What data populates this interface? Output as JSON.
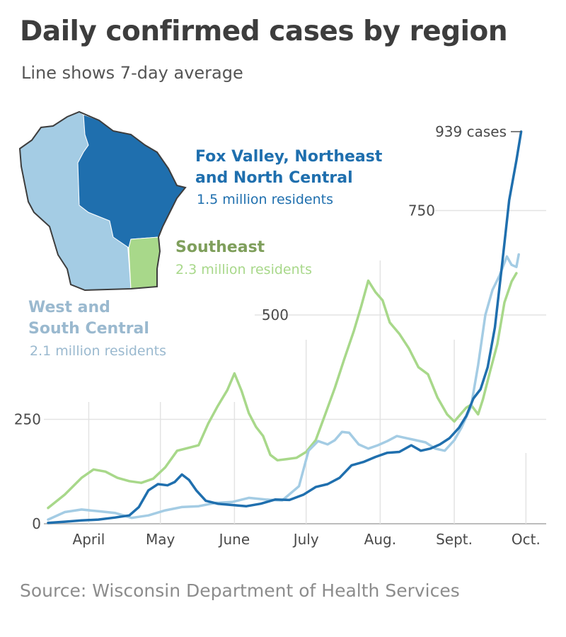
{
  "title": "Daily confirmed cases by region",
  "subtitle": "Line shows 7-day average",
  "source": "Source: Wisconsin Department of Health Services",
  "colors": {
    "north": "#1f6fae",
    "southeast": "#a8d88a",
    "west": "#a4cce4",
    "southeast_label": "#7f9f5c",
    "west_label": "#9ab9cf",
    "grid": "#e3e3e3"
  },
  "map": {
    "description_icon": "wisconsin-region-map"
  },
  "annotations": {
    "north": {
      "line1": "Fox Valley, Northeast",
      "line2": "and North Central",
      "residents": "1.5 million residents"
    },
    "southeast": {
      "line1": "Southeast",
      "residents": "2.3 million residents"
    },
    "west": {
      "line1": "West and",
      "line2": "South Central",
      "residents": "2.1 million residents"
    },
    "peak": "939 cases"
  },
  "chart_data": {
    "type": "line",
    "title": "Daily confirmed cases by region",
    "subtitle": "Line shows 7-day average",
    "ylim": [
      0,
      1000
    ],
    "yticks": [
      0,
      250,
      500,
      750
    ],
    "ytick_labels": [
      "0",
      "250",
      "500",
      "750"
    ],
    "xlim": [
      "2020-03-15",
      "2020-09-30"
    ],
    "x_axis_type": "date",
    "xticks": [
      "2020-04-01",
      "2020-05-01",
      "2020-06-01",
      "2020-07-01",
      "2020-08-01",
      "2020-09-01",
      "2020-10-01"
    ],
    "xtick_labels": [
      "April",
      "May",
      "June",
      "July",
      "Aug.",
      "Sept.",
      "Oct."
    ],
    "grid": true,
    "series": [
      {
        "name": "Southeast",
        "color": "#a8d88a",
        "points": [
          [
            "2020-03-15",
            38
          ],
          [
            "2020-03-22",
            70
          ],
          [
            "2020-03-29",
            110
          ],
          [
            "2020-04-03",
            130
          ],
          [
            "2020-04-08",
            125
          ],
          [
            "2020-04-13",
            110
          ],
          [
            "2020-04-18",
            102
          ],
          [
            "2020-04-23",
            98
          ],
          [
            "2020-04-28",
            108
          ],
          [
            "2020-05-03",
            135
          ],
          [
            "2020-05-08",
            175
          ],
          [
            "2020-05-13",
            182
          ],
          [
            "2020-05-17",
            188
          ],
          [
            "2020-05-21",
            240
          ],
          [
            "2020-05-25",
            282
          ],
          [
            "2020-05-29",
            320
          ],
          [
            "2020-06-01",
            360
          ],
          [
            "2020-06-04",
            318
          ],
          [
            "2020-06-07",
            265
          ],
          [
            "2020-06-10",
            232
          ],
          [
            "2020-06-13",
            210
          ],
          [
            "2020-06-16",
            165
          ],
          [
            "2020-06-19",
            152
          ],
          [
            "2020-06-23",
            155
          ],
          [
            "2020-06-27",
            158
          ],
          [
            "2020-07-01",
            172
          ],
          [
            "2020-07-05",
            200
          ],
          [
            "2020-07-09",
            262
          ],
          [
            "2020-07-13",
            325
          ],
          [
            "2020-07-17",
            395
          ],
          [
            "2020-07-21",
            462
          ],
          [
            "2020-07-24",
            520
          ],
          [
            "2020-07-27",
            582
          ],
          [
            "2020-07-30",
            555
          ],
          [
            "2020-08-02",
            535
          ],
          [
            "2020-08-05",
            482
          ],
          [
            "2020-08-09",
            455
          ],
          [
            "2020-08-13",
            420
          ],
          [
            "2020-08-17",
            375
          ],
          [
            "2020-08-21",
            358
          ],
          [
            "2020-08-25",
            302
          ],
          [
            "2020-08-29",
            262
          ],
          [
            "2020-09-01",
            245
          ],
          [
            "2020-09-03",
            258
          ],
          [
            "2020-09-06",
            278
          ],
          [
            "2020-09-08",
            285
          ],
          [
            "2020-09-11",
            262
          ],
          [
            "2020-09-13",
            298
          ],
          [
            "2020-09-16",
            365
          ],
          [
            "2020-09-19",
            430
          ],
          [
            "2020-09-22",
            530
          ],
          [
            "2020-09-25",
            580
          ],
          [
            "2020-09-27",
            600
          ]
        ]
      },
      {
        "name": "West and South Central",
        "color": "#a4cce4",
        "points": [
          [
            "2020-03-15",
            10
          ],
          [
            "2020-03-22",
            28
          ],
          [
            "2020-03-29",
            34
          ],
          [
            "2020-04-05",
            30
          ],
          [
            "2020-04-12",
            26
          ],
          [
            "2020-04-19",
            14
          ],
          [
            "2020-04-26",
            20
          ],
          [
            "2020-05-03",
            32
          ],
          [
            "2020-05-10",
            40
          ],
          [
            "2020-05-17",
            42
          ],
          [
            "2020-05-24",
            50
          ],
          [
            "2020-05-31",
            52
          ],
          [
            "2020-06-07",
            62
          ],
          [
            "2020-06-14",
            58
          ],
          [
            "2020-06-21",
            56
          ],
          [
            "2020-06-28",
            90
          ],
          [
            "2020-07-02",
            175
          ],
          [
            "2020-07-06",
            198
          ],
          [
            "2020-07-10",
            190
          ],
          [
            "2020-07-13",
            200
          ],
          [
            "2020-07-16",
            220
          ],
          [
            "2020-07-19",
            218
          ],
          [
            "2020-07-23",
            190
          ],
          [
            "2020-07-27",
            180
          ],
          [
            "2020-07-31",
            188
          ],
          [
            "2020-08-04",
            198
          ],
          [
            "2020-08-08",
            210
          ],
          [
            "2020-08-12",
            205
          ],
          [
            "2020-08-16",
            200
          ],
          [
            "2020-08-20",
            195
          ],
          [
            "2020-08-24",
            180
          ],
          [
            "2020-08-28",
            175
          ],
          [
            "2020-09-01",
            200
          ],
          [
            "2020-09-04",
            230
          ],
          [
            "2020-09-08",
            280
          ],
          [
            "2020-09-11",
            380
          ],
          [
            "2020-09-14",
            500
          ],
          [
            "2020-09-17",
            560
          ],
          [
            "2020-09-20",
            595
          ],
          [
            "2020-09-23",
            640
          ],
          [
            "2020-09-25",
            620
          ],
          [
            "2020-09-27",
            615
          ],
          [
            "2020-09-28",
            645
          ]
        ]
      },
      {
        "name": "Fox Valley, Northeast and North Central",
        "color": "#1f6fae",
        "points": [
          [
            "2020-03-15",
            2
          ],
          [
            "2020-03-22",
            5
          ],
          [
            "2020-03-29",
            8
          ],
          [
            "2020-04-05",
            10
          ],
          [
            "2020-04-12",
            15
          ],
          [
            "2020-04-18",
            20
          ],
          [
            "2020-04-22",
            40
          ],
          [
            "2020-04-26",
            80
          ],
          [
            "2020-04-30",
            95
          ],
          [
            "2020-05-04",
            92
          ],
          [
            "2020-05-07",
            100
          ],
          [
            "2020-05-10",
            118
          ],
          [
            "2020-05-13",
            105
          ],
          [
            "2020-05-16",
            80
          ],
          [
            "2020-05-20",
            55
          ],
          [
            "2020-05-25",
            48
          ],
          [
            "2020-05-31",
            45
          ],
          [
            "2020-06-06",
            42
          ],
          [
            "2020-06-12",
            48
          ],
          [
            "2020-06-18",
            58
          ],
          [
            "2020-06-24",
            57
          ],
          [
            "2020-06-30",
            70
          ],
          [
            "2020-07-05",
            88
          ],
          [
            "2020-07-10",
            95
          ],
          [
            "2020-07-15",
            110
          ],
          [
            "2020-07-20",
            140
          ],
          [
            "2020-07-25",
            148
          ],
          [
            "2020-07-30",
            160
          ],
          [
            "2020-08-04",
            170
          ],
          [
            "2020-08-09",
            172
          ],
          [
            "2020-08-14",
            188
          ],
          [
            "2020-08-18",
            175
          ],
          [
            "2020-08-22",
            180
          ],
          [
            "2020-08-26",
            190
          ],
          [
            "2020-08-30",
            205
          ],
          [
            "2020-09-03",
            230
          ],
          [
            "2020-09-06",
            258
          ],
          [
            "2020-09-09",
            300
          ],
          [
            "2020-09-12",
            322
          ],
          [
            "2020-09-15",
            375
          ],
          [
            "2020-09-18",
            470
          ],
          [
            "2020-09-21",
            620
          ],
          [
            "2020-09-24",
            775
          ],
          [
            "2020-09-27",
            870
          ],
          [
            "2020-09-29",
            939
          ]
        ]
      }
    ]
  }
}
